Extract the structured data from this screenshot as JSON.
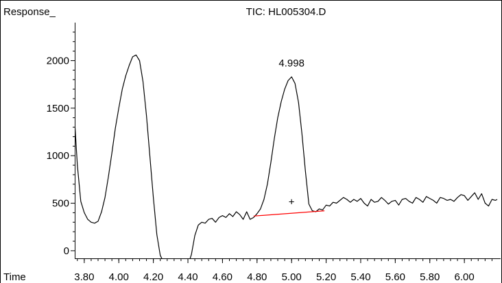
{
  "chart_data": {
    "type": "line",
    "title": "TIC: HL005304.D",
    "ylabel": "Response_",
    "xlabel": "Time",
    "xlim": [
      3.745,
      6.19
    ],
    "ylim": [
      -80,
      2400
    ],
    "x_ticks": [
      "3.80",
      "4.00",
      "4.20",
      "4.40",
      "4.60",
      "4.80",
      "5.00",
      "5.20",
      "5.40",
      "5.60",
      "5.80",
      "6.00"
    ],
    "y_ticks": [
      "0",
      "500",
      "1000",
      "1500",
      "2000"
    ],
    "grid": false,
    "legend": "none",
    "series": [
      {
        "line_color": "#000000",
        "x": [
          3.745,
          3.76,
          3.78,
          3.8,
          3.82,
          3.84,
          3.86,
          3.88,
          3.9,
          3.92,
          3.94,
          3.96,
          3.98,
          4.0,
          4.02,
          4.04,
          4.06,
          4.08,
          4.1,
          4.12,
          4.14,
          4.16,
          4.18,
          4.2,
          4.22,
          4.24,
          4.26,
          4.28
        ],
        "y": [
          1350,
          900,
          520,
          400,
          330,
          300,
          290,
          310,
          410,
          560,
          780,
          1030,
          1290,
          1500,
          1700,
          1840,
          1950,
          2040,
          2060,
          2000,
          1780,
          1420,
          990,
          560,
          170,
          -50,
          -120,
          -150
        ]
      },
      {
        "line_color": "#000000",
        "x": [
          4.4,
          4.42,
          4.44,
          4.46,
          4.48,
          4.5,
          4.52,
          4.54,
          4.56,
          4.58,
          4.6,
          4.62,
          4.64,
          4.66,
          4.68,
          4.7,
          4.72,
          4.74,
          4.76,
          4.78,
          4.8,
          4.82,
          4.84,
          4.86,
          4.88,
          4.9,
          4.92,
          4.94,
          4.96,
          4.98,
          5.0,
          5.02,
          5.04,
          5.06,
          5.08,
          5.1,
          5.12,
          5.14,
          5.16,
          5.18,
          5.2,
          5.22,
          5.24,
          5.26,
          5.28,
          5.3,
          5.32,
          5.34,
          5.36,
          5.38,
          5.4,
          5.42,
          5.44,
          5.46,
          5.48,
          5.5,
          5.52,
          5.54,
          5.56,
          5.58,
          5.6,
          5.62,
          5.64,
          5.66,
          5.68,
          5.7,
          5.72,
          5.74,
          5.76,
          5.78,
          5.8,
          5.82,
          5.84,
          5.86,
          5.88,
          5.9,
          5.92,
          5.94,
          5.96,
          5.98,
          6.0,
          6.02,
          6.04,
          6.06,
          6.08,
          6.1,
          6.12,
          6.14,
          6.16,
          6.18,
          6.19
        ],
        "y": [
          -150,
          -40,
          160,
          270,
          300,
          290,
          330,
          340,
          300,
          350,
          370,
          350,
          390,
          360,
          410,
          380,
          330,
          410,
          330,
          350,
          390,
          440,
          540,
          700,
          930,
          1180,
          1400,
          1570,
          1700,
          1790,
          1830,
          1760,
          1560,
          1230,
          840,
          490,
          420,
          410,
          440,
          430,
          480,
          470,
          510,
          500,
          530,
          560,
          540,
          510,
          540,
          520,
          550,
          500,
          470,
          540,
          510,
          520,
          560,
          530,
          490,
          520,
          530,
          480,
          540,
          550,
          520,
          500,
          560,
          540,
          510,
          570,
          550,
          530,
          500,
          560,
          550,
          530,
          540,
          520,
          560,
          590,
          580,
          530,
          570,
          610,
          540,
          600,
          500,
          470,
          540,
          530,
          540
        ]
      },
      {
        "line_color": "#ff0000",
        "x": [
          4.78,
          5.19
        ],
        "y": [
          365,
          420
        ]
      }
    ],
    "annotations": [
      {
        "text": "4.998",
        "x": 5.0,
        "y": 1940
      },
      {
        "text": "+",
        "x": 5.0,
        "y": 480
      }
    ]
  }
}
